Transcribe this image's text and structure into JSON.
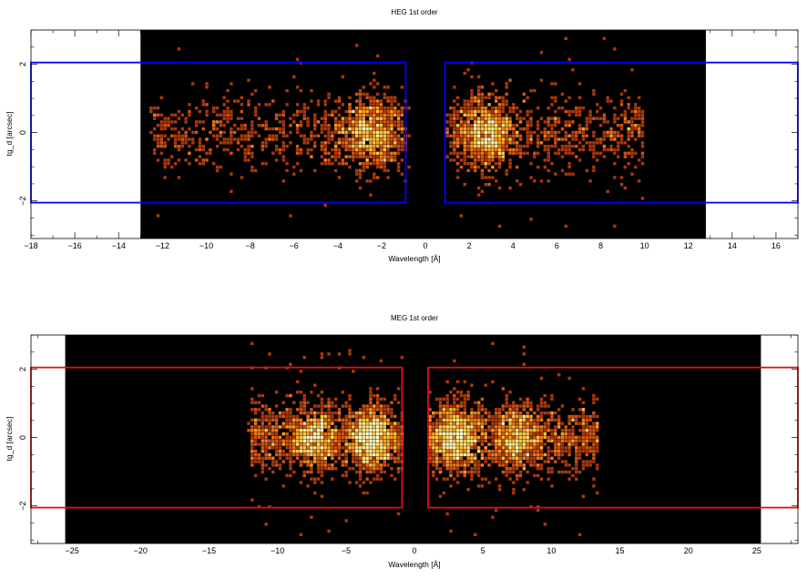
{
  "chart_data": [
    {
      "type": "heatmap",
      "title": "HEG 1st order",
      "xlabel": "Wavelength [Å]",
      "ylabel": "tg_d [arcsec]",
      "xlim": [
        -18,
        17
      ],
      "ylim": [
        -3.1,
        3.0
      ],
      "x_ticks": [
        -18,
        -16,
        -14,
        -12,
        -10,
        -8,
        -6,
        -4,
        -2,
        0,
        2,
        4,
        6,
        8,
        10,
        12,
        14,
        16
      ],
      "y_ticks": [
        -2,
        0,
        2
      ],
      "detector_range_x": [
        -13,
        12.8
      ],
      "background_color": "#000000",
      "extraction_region_color": "#0000ff",
      "extraction_regions": [
        {
          "x": [
            -18,
            -0.9
          ],
          "y": [
            -2.05,
            2.05
          ]
        },
        {
          "x": [
            0.9,
            17
          ],
          "y": [
            -2.05,
            2.05
          ]
        }
      ],
      "event_clusters": [
        {
          "x_range": [
            -12.5,
            -0.8
          ],
          "peak_x": -2.5,
          "y_spread": 0.55,
          "intensity": "high"
        },
        {
          "x_range": [
            1.0,
            10.0
          ],
          "peak_x": 2.8,
          "y_spread": 0.55,
          "intensity": "high"
        }
      ]
    },
    {
      "type": "heatmap",
      "title": "MEG 1st order",
      "xlabel": "Wavelength [Å]",
      "ylabel": "tg_d [arcsec]",
      "xlim": [
        -28,
        28
      ],
      "ylim": [
        -3.1,
        3.0
      ],
      "x_ticks": [
        -25,
        -20,
        -15,
        -10,
        -5,
        0,
        5,
        10,
        15,
        20,
        25
      ],
      "y_ticks": [
        -2,
        0,
        2
      ],
      "detector_range_x": [
        -25.5,
        25.3
      ],
      "background_color": "#000000",
      "extraction_region_color": "#dd1111",
      "extraction_regions": [
        {
          "x": [
            -28,
            -0.9
          ],
          "y": [
            -2.05,
            2.05
          ]
        },
        {
          "x": [
            1.0,
            28
          ],
          "y": [
            -2.05,
            2.05
          ]
        }
      ],
      "event_clusters": [
        {
          "x_range": [
            -12.0,
            -0.8
          ],
          "peak_x": -3.2,
          "y_spread": 0.5,
          "intensity": "high"
        },
        {
          "x_range": [
            -12.0,
            -0.8
          ],
          "peak_x": -7.3,
          "y_spread": 0.5,
          "intensity": "medium"
        },
        {
          "x_range": [
            1.0,
            13.5
          ],
          "peak_x": 3.0,
          "y_spread": 0.5,
          "intensity": "high"
        },
        {
          "x_range": [
            1.0,
            13.5
          ],
          "peak_x": 7.5,
          "y_spread": 0.5,
          "intensity": "medium"
        }
      ]
    }
  ]
}
